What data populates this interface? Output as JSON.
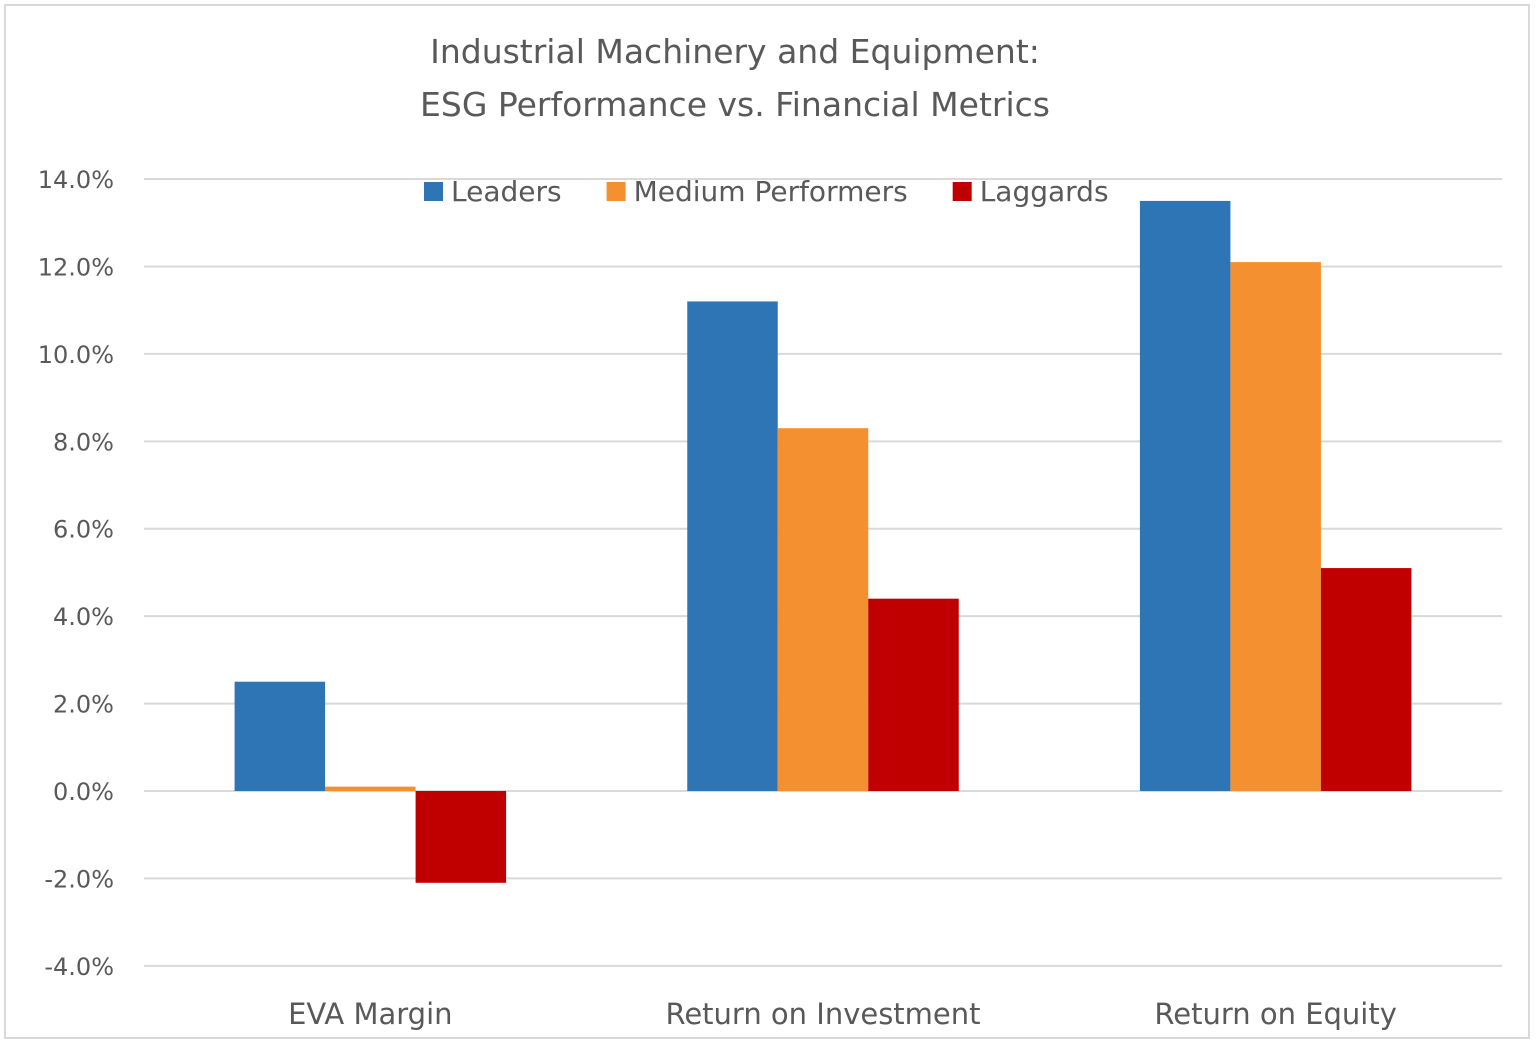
{
  "chart_data": {
    "type": "bar",
    "title": [
      "Industrial Machinery and Equipment:",
      "ESG Performance vs. Financial Metrics"
    ],
    "categories": [
      "EVA Margin",
      "Return on Investment",
      "Return on Equity"
    ],
    "series": [
      {
        "name": "Leaders",
        "color": "#2E75B6",
        "values": [
          2.5,
          11.2,
          13.5
        ]
      },
      {
        "name": "Medium Performers",
        "color": "#F4902F",
        "values": [
          0.1,
          8.3,
          12.1
        ]
      },
      {
        "name": "Laggards",
        "color": "#C00000",
        "values": [
          -2.1,
          4.4,
          5.1
        ]
      }
    ],
    "ylim": [
      -4,
      14
    ],
    "yticks": [
      -4,
      -2,
      0,
      2,
      4,
      6,
      8,
      10,
      12,
      14
    ],
    "ytick_format": "0.0%",
    "grid": true,
    "legend_position": "top"
  }
}
